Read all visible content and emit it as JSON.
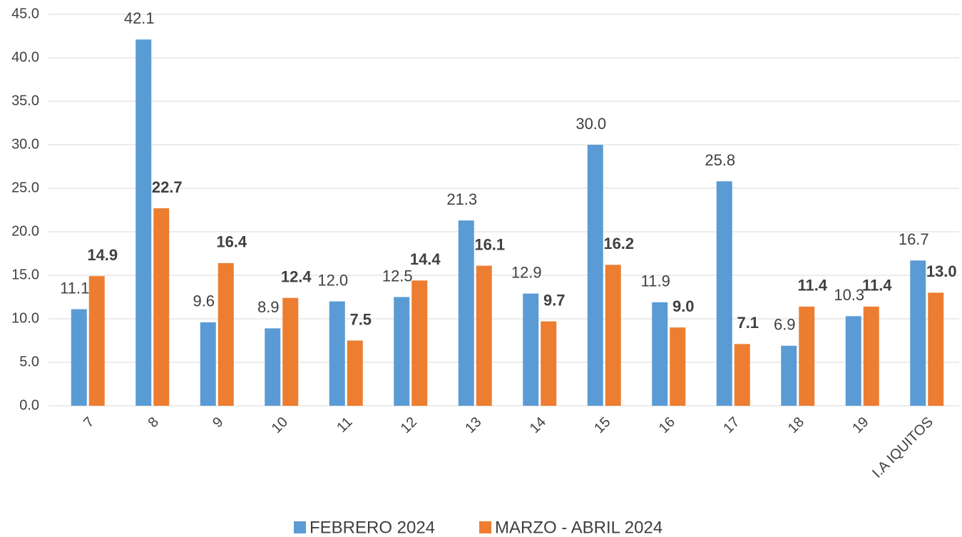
{
  "chart_data": {
    "type": "bar",
    "categories": [
      "7",
      "8",
      "9",
      "10",
      "11",
      "12",
      "13",
      "14",
      "15",
      "16",
      "17",
      "18",
      "19",
      "I.A IQUITOS"
    ],
    "series": [
      {
        "name": "FEBRERO 2024",
        "color": "#5b9bd5",
        "values": [
          11.1,
          42.1,
          9.6,
          8.9,
          12.0,
          12.5,
          21.3,
          12.9,
          30.0,
          11.9,
          25.8,
          6.9,
          10.3,
          16.7
        ],
        "value_labels": [
          "11.1",
          "42.1",
          "9.6",
          "8.9",
          "12.0",
          "12.5",
          "21.3",
          "12.9",
          "30.0",
          "11.9",
          "25.8",
          "6.9",
          "10.3",
          "16.7"
        ]
      },
      {
        "name": "MARZO - ABRIL 2024",
        "color": "#ed7d31",
        "values": [
          14.9,
          22.7,
          16.4,
          12.4,
          7.5,
          14.4,
          16.1,
          9.7,
          16.2,
          9.0,
          7.1,
          11.4,
          11.4,
          13.0
        ],
        "value_labels": [
          "14.9",
          "22.7",
          "16.4",
          "12.4",
          "7.5",
          "14.4",
          "16.1",
          "9.7",
          "16.2",
          "9.0",
          "7.1",
          "11.4",
          "11.4",
          "13.0"
        ]
      }
    ],
    "ylim": [
      0,
      45
    ],
    "yticks": [
      {
        "value": 0,
        "label": "0.0"
      },
      {
        "value": 5,
        "label": "5.0"
      },
      {
        "value": 10,
        "label": "10.0"
      },
      {
        "value": 15,
        "label": "15.0"
      },
      {
        "value": 20,
        "label": "20.0"
      },
      {
        "value": 25,
        "label": "25.0"
      },
      {
        "value": 30,
        "label": "30.0"
      },
      {
        "value": 35,
        "label": "35.0"
      },
      {
        "value": 40,
        "label": "40.0"
      },
      {
        "value": 45,
        "label": "45.0"
      }
    ],
    "grid": true,
    "legend": "bottom"
  }
}
